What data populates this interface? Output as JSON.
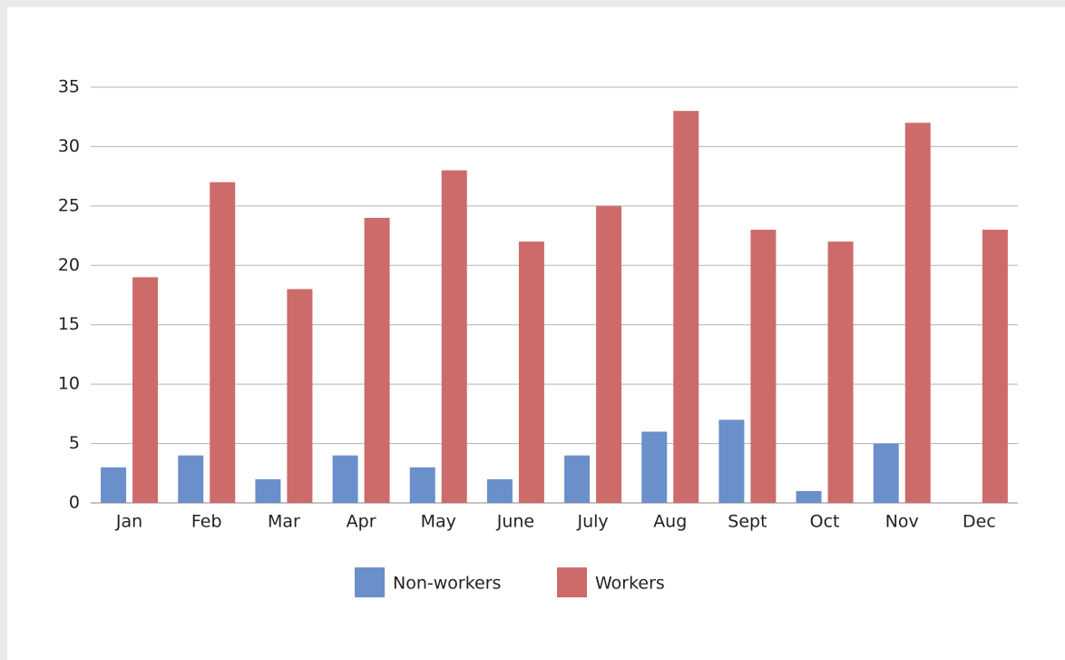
{
  "chart_data": {
    "type": "bar",
    "categories": [
      "Jan",
      "Feb",
      "Mar",
      "Apr",
      "May",
      "June",
      "July",
      "Aug",
      "Sept",
      "Oct",
      "Nov",
      "Dec"
    ],
    "series": [
      {
        "name": "Non-workers",
        "color": "#6a8fca",
        "values": [
          3,
          4,
          2,
          4,
          3,
          2,
          4,
          6,
          7,
          1,
          5,
          0
        ]
      },
      {
        "name": "Workers",
        "color": "#cd6b6b",
        "values": [
          19,
          27,
          18,
          24,
          28,
          22,
          25,
          33,
          23,
          22,
          32,
          23
        ]
      }
    ],
    "ylim": [
      0,
      35
    ],
    "yticks": [
      0,
      5,
      10,
      15,
      20,
      25,
      30,
      35
    ],
    "grid": true,
    "legend": "bottom"
  }
}
